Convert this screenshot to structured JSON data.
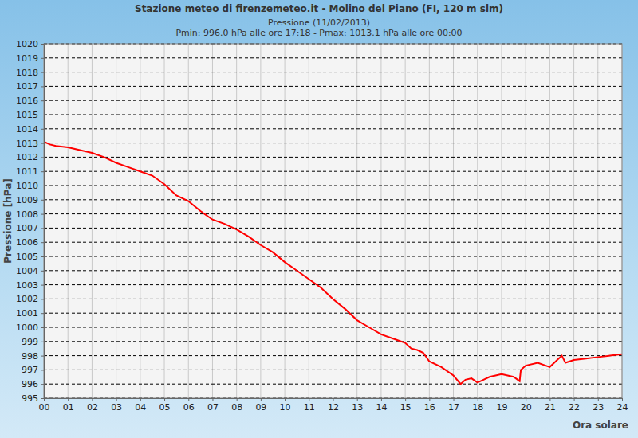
{
  "chart_data": {
    "type": "line",
    "title": "Stazione meteo di firenzemeteo.it - Molino del Piano (FI, 120 m slm)",
    "subtitle": "Pressione (11/02/2013)",
    "annotations": [
      "Pmin: 996.0 hPa alle ore 17:18 - Pmax: 1013.1 hPa alle ore 00:00"
    ],
    "x_label": "Ora solare",
    "y_label": "Pressione [hPa]",
    "x": [
      0,
      0.25,
      0.5,
      1,
      1.5,
      2,
      2.5,
      3,
      3.5,
      4,
      4.5,
      5,
      5.5,
      6,
      6.5,
      7,
      7.5,
      8,
      8.5,
      9,
      9.5,
      10,
      10.5,
      11,
      11.5,
      12,
      12.5,
      13,
      13.5,
      14,
      14.5,
      15,
      15.25,
      15.5,
      15.75,
      16,
      16.5,
      17,
      17.3,
      17.5,
      17.75,
      18,
      18.25,
      18.5,
      19,
      19.5,
      19.75,
      19.8,
      20,
      20.5,
      21,
      21.5,
      21.65,
      22,
      22.5,
      23,
      23.5,
      24
    ],
    "values": [
      1013.1,
      1012.9,
      1012.8,
      1012.7,
      1012.5,
      1012.3,
      1012.0,
      1011.6,
      1011.3,
      1011.0,
      1010.7,
      1010.1,
      1009.3,
      1008.9,
      1008.2,
      1007.6,
      1007.3,
      1006.9,
      1006.4,
      1005.8,
      1005.3,
      1004.6,
      1004.0,
      1003.4,
      1002.8,
      1002.0,
      1001.3,
      1000.5,
      1000.0,
      999.5,
      999.2,
      998.9,
      998.5,
      998.4,
      998.2,
      997.6,
      997.2,
      996.6,
      996.0,
      996.3,
      996.4,
      996.1,
      996.3,
      996.5,
      996.7,
      996.5,
      996.2,
      997.0,
      997.3,
      997.5,
      997.2,
      998.0,
      997.5,
      997.7,
      997.8,
      997.9,
      998.0,
      998.1
    ],
    "color": "#ff0000",
    "xlim": [
      0,
      24
    ],
    "ylim": [
      995,
      1020
    ],
    "xticks": [
      {
        "value": 0,
        "label": "00"
      },
      {
        "value": 1,
        "label": "01"
      },
      {
        "value": 2,
        "label": "02"
      },
      {
        "value": 3,
        "label": "03"
      },
      {
        "value": 4,
        "label": "04"
      },
      {
        "value": 5,
        "label": "05"
      },
      {
        "value": 6,
        "label": "06"
      },
      {
        "value": 7,
        "label": "07"
      },
      {
        "value": 8,
        "label": "08"
      },
      {
        "value": 9,
        "label": "09"
      },
      10,
      11,
      12,
      13,
      14,
      15,
      16,
      17,
      18,
      19,
      20,
      21,
      22,
      23,
      24
    ],
    "yticks": [
      995,
      996,
      997,
      998,
      999,
      1000,
      1001,
      1002,
      1003,
      1004,
      1005,
      1006,
      1007,
      1008,
      1009,
      1010,
      1011,
      1012,
      1013,
      1014,
      1015,
      1016,
      1017,
      1018,
      1019,
      1020
    ],
    "grid": true
  }
}
